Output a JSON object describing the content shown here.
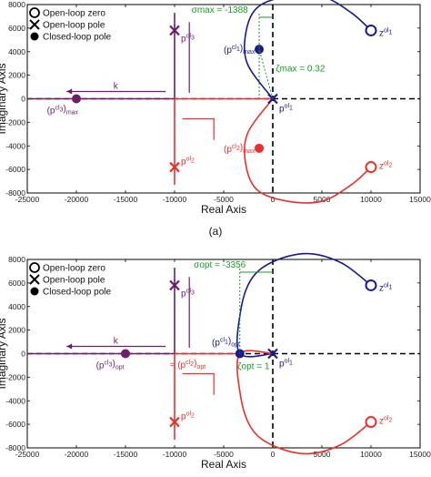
{
  "caption_a": "(a)",
  "chart_data": [
    {
      "type": "root-locus",
      "panel": "a",
      "xlabel": "Real Axis",
      "ylabel": "Imaginary Axis",
      "xlim": [
        -25000,
        15000
      ],
      "ylim": [
        -8000,
        8000
      ],
      "xticks": [
        -25000,
        -20000,
        -15000,
        -10000,
        -5000,
        0,
        5000,
        10000,
        15000
      ],
      "yticks": [
        -8000,
        -6000,
        -4000,
        -2000,
        0,
        2000,
        4000,
        6000,
        8000
      ],
      "grid": false,
      "legend": {
        "position": "top-left",
        "entries": [
          "Open-loop zero",
          "Open-loop pole",
          "Closed-loop pole"
        ]
      },
      "open_loop_zeros": [
        [
          10000,
          5800
        ],
        [
          10000,
          -5800
        ]
      ],
      "open_loop_poles": [
        [
          0,
          0
        ],
        [
          -10000,
          5800
        ],
        [
          -10000,
          -5800
        ]
      ],
      "closed_loop_poles": [
        [
          -1388,
          4200
        ],
        [
          -1388,
          -4200
        ],
        [
          -20000,
          0
        ]
      ],
      "branches": [
        {
          "color": "#1a1a8c",
          "points": [
            [
              0,
              0
            ],
            [
              -2600,
              3000
            ],
            [
              -2700,
              5800
            ],
            [
              -1500,
              7800
            ],
            [
              1500,
              8700
            ],
            [
              5000,
              8700
            ],
            [
              8000,
              7300
            ],
            [
              10000,
              5800
            ]
          ]
        },
        {
          "color": "#e8312d",
          "points": [
            [
              0,
              0
            ],
            [
              -2600,
              -3000
            ],
            [
              -2700,
              -5800
            ],
            [
              -1500,
              -7800
            ],
            [
              1500,
              -8700
            ],
            [
              5000,
              -8700
            ],
            [
              8000,
              -7300
            ],
            [
              10000,
              -5800
            ]
          ]
        },
        {
          "color": "#6e1d6b",
          "points": [
            [
              -10000,
              7300
            ],
            [
              -10000,
              0
            ],
            [
              -25000,
              0
            ]
          ]
        },
        {
          "color": "#e8312d",
          "points": [
            [
              -10000,
              -7300
            ],
            [
              -10000,
              0
            ],
            [
              0,
              0
            ]
          ]
        }
      ],
      "labels": {
        "sigma": "σmax = -1388",
        "zeta": "ζmax = 0.32",
        "k": "k",
        "p1": "(p1cl)max",
        "p2": "(p2cl)max",
        "p3": "(p3cl)max",
        "p1ol": "p1ol",
        "p2ol": "p2ol",
        "p3ol": "p3ol",
        "z1ol": "z1ol",
        "z2ol": "z2ol"
      }
    },
    {
      "type": "root-locus",
      "panel": "b",
      "xlabel": "Real Axis",
      "ylabel": "Imaginary Axis",
      "xlim": [
        -25000,
        15000
      ],
      "ylim": [
        -8000,
        8000
      ],
      "xticks": [
        -25000,
        -20000,
        -15000,
        -10000,
        -5000,
        0,
        5000,
        10000,
        15000
      ],
      "yticks": [
        -8000,
        -6000,
        -4000,
        -2000,
        0,
        2000,
        4000,
        6000,
        8000
      ],
      "grid": false,
      "legend": {
        "position": "top-left",
        "entries": [
          "Open-loop zero",
          "Open-loop pole",
          "Closed-loop pole"
        ]
      },
      "open_loop_zeros": [
        [
          10000,
          5800
        ],
        [
          10000,
          -5800
        ]
      ],
      "open_loop_poles": [
        [
          0,
          0
        ],
        [
          -10000,
          5800
        ],
        [
          -10000,
          -5800
        ]
      ],
      "closed_loop_poles": [
        [
          -3356,
          0
        ],
        [
          -15000,
          0
        ]
      ],
      "branches": [
        {
          "color": "#1a1a8c",
          "points": [
            [
              0,
              0
            ],
            [
              -3356,
              0
            ],
            [
              -3300,
              3500
            ],
            [
              -2200,
              6300
            ],
            [
              0,
              7800
            ],
            [
              3500,
              8500
            ],
            [
              7000,
              7700
            ],
            [
              10000,
              5800
            ]
          ]
        },
        {
          "color": "#e8312d",
          "points": [
            [
              0,
              0
            ],
            [
              -3356,
              0
            ],
            [
              -3300,
              -3500
            ],
            [
              -2200,
              -6300
            ],
            [
              0,
              -7800
            ],
            [
              3500,
              -8500
            ],
            [
              7000,
              -7700
            ],
            [
              10000,
              -5800
            ]
          ]
        },
        {
          "color": "#6e1d6b",
          "points": [
            [
              -10000,
              7300
            ],
            [
              -10000,
              0
            ],
            [
              -25000,
              0
            ]
          ]
        },
        {
          "color": "#e8312d",
          "points": [
            [
              -10000,
              -7300
            ],
            [
              -10000,
              0
            ],
            [
              -3356,
              0
            ]
          ]
        }
      ],
      "labels": {
        "sigma": "σopt = -3356",
        "zeta": "ζopt = 1",
        "k": "k",
        "p1": "(p1cl)opt",
        "p2": "= (p2cl)opt",
        "p3": "(p3cl)opt",
        "p1ol": "p1ol",
        "p2ol": "p2ol",
        "p3ol": "p3ol",
        "z1ol": "z1ol",
        "z2ol": "z2ol"
      }
    }
  ]
}
